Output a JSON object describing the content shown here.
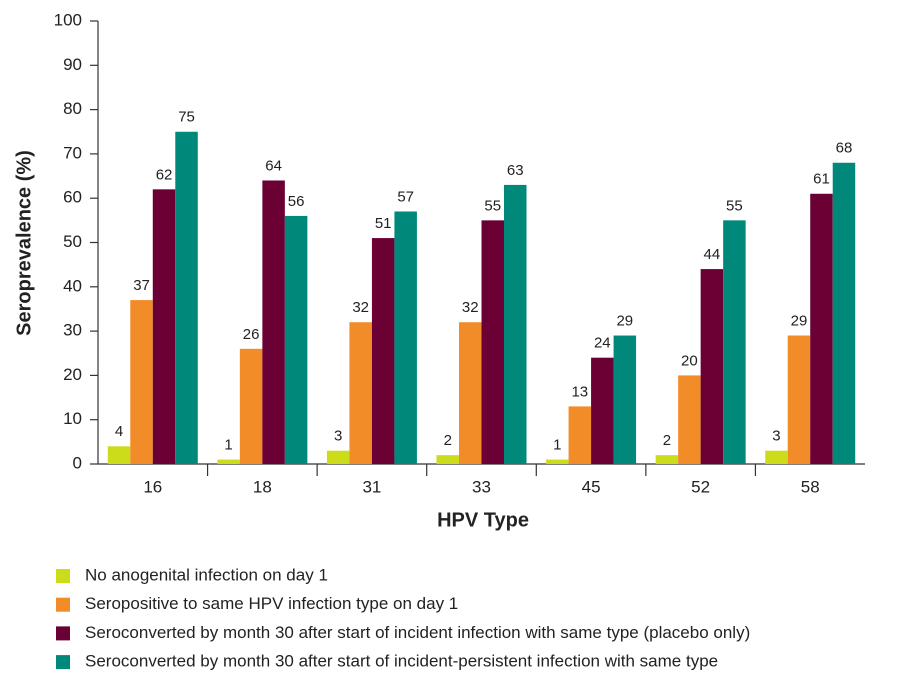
{
  "chart_data": {
    "type": "bar",
    "x_label": "HPV Type",
    "y_label": "Seroprevalence (%)",
    "categories": [
      "16",
      "18",
      "31",
      "33",
      "45",
      "52",
      "58"
    ],
    "series": [
      {
        "name": "No anogenital infection on day 1",
        "color": "#cddc1a",
        "values": [
          4,
          1,
          3,
          2,
          1,
          2,
          3
        ]
      },
      {
        "name": "Seropositive to same HPV infection type on day 1",
        "color": "#f28c28",
        "values": [
          37,
          26,
          32,
          32,
          13,
          20,
          29
        ]
      },
      {
        "name": "Seroconverted by month 30 after start of incident infection with same type (placebo only)",
        "color": "#6b0035",
        "values": [
          62,
          64,
          51,
          55,
          24,
          44,
          61
        ]
      },
      {
        "name": "Seroconverted by month 30 after start of incident-persistent infection with same type",
        "color": "#00897b",
        "values": [
          75,
          56,
          57,
          63,
          29,
          55,
          68
        ]
      }
    ],
    "ylim": [
      0,
      100
    ],
    "yticks": [
      0,
      10,
      20,
      30,
      40,
      50,
      60,
      70,
      80,
      90,
      100
    ],
    "grid": false
  }
}
